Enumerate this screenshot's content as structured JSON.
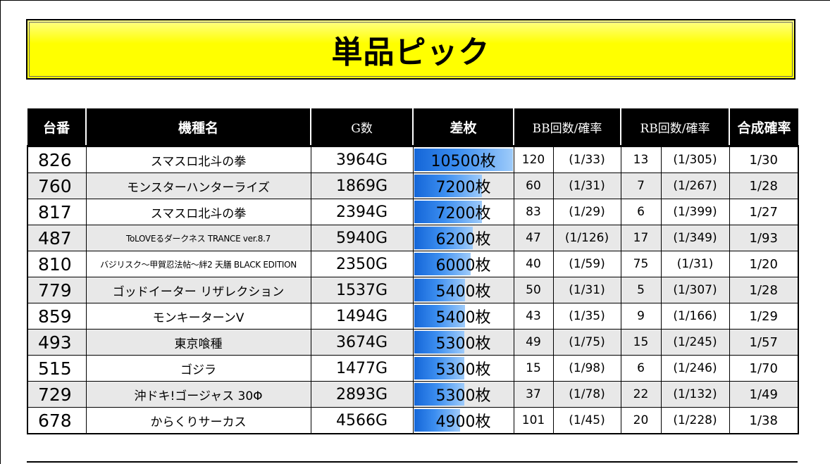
{
  "title": "単品ピック",
  "headers": {
    "no": "台番",
    "machine": "機種名",
    "games": "G数",
    "diff": "差枚",
    "bb": "BB回数/確率",
    "rb": "RB回数/確率",
    "combined": "合成確率"
  },
  "colors": {
    "banner": "#ffff00",
    "header_bg": "#000000",
    "bar": "#1e73e0",
    "stripe": "#e8e8e8"
  },
  "rows": [
    {
      "no": "826",
      "machine": "スマスロ北斗の拳",
      "games": "3964G",
      "diff": "10500枚",
      "diff_value": 10500,
      "bb": "120",
      "bb_rate": "(1/33)",
      "rb": "13",
      "rb_rate": "(1/305)",
      "combined": "1/30"
    },
    {
      "no": "760",
      "machine": "モンスターハンターライズ",
      "games": "1869G",
      "diff": "7200枚",
      "diff_value": 7200,
      "bb": "60",
      "bb_rate": "(1/31)",
      "rb": "7",
      "rb_rate": "(1/267)",
      "combined": "1/28"
    },
    {
      "no": "817",
      "machine": "スマスロ北斗の拳",
      "games": "2394G",
      "diff": "7200枚",
      "diff_value": 7200,
      "bb": "83",
      "bb_rate": "(1/29)",
      "rb": "6",
      "rb_rate": "(1/399)",
      "combined": "1/27"
    },
    {
      "no": "487",
      "machine": "ToLOVEるダークネス TRANCE ver.8.7",
      "games": "5940G",
      "diff": "6200枚",
      "diff_value": 6200,
      "bb": "47",
      "bb_rate": "(1/126)",
      "rb": "17",
      "rb_rate": "(1/349)",
      "combined": "1/93"
    },
    {
      "no": "810",
      "machine": "バジリスク～甲賀忍法帖～絆2 天膳 BLACK EDITION",
      "games": "2350G",
      "diff": "6000枚",
      "diff_value": 6000,
      "bb": "40",
      "bb_rate": "(1/59)",
      "rb": "75",
      "rb_rate": "(1/31)",
      "combined": "1/20"
    },
    {
      "no": "779",
      "machine": "ゴッドイーター リザレクション",
      "games": "1537G",
      "diff": "5400枚",
      "diff_value": 5400,
      "bb": "50",
      "bb_rate": "(1/31)",
      "rb": "5",
      "rb_rate": "(1/307)",
      "combined": "1/28"
    },
    {
      "no": "859",
      "machine": "モンキーターンV",
      "games": "1494G",
      "diff": "5400枚",
      "diff_value": 5400,
      "bb": "43",
      "bb_rate": "(1/35)",
      "rb": "9",
      "rb_rate": "(1/166)",
      "combined": "1/29"
    },
    {
      "no": "493",
      "machine": "東京喰種",
      "games": "3674G",
      "diff": "5300枚",
      "diff_value": 5300,
      "bb": "49",
      "bb_rate": "(1/75)",
      "rb": "15",
      "rb_rate": "(1/245)",
      "combined": "1/57"
    },
    {
      "no": "515",
      "machine": "ゴジラ",
      "games": "1477G",
      "diff": "5300枚",
      "diff_value": 5300,
      "bb": "15",
      "bb_rate": "(1/98)",
      "rb": "6",
      "rb_rate": "(1/246)",
      "combined": "1/70"
    },
    {
      "no": "729",
      "machine": "沖ドキ!ゴージャス 30Φ",
      "games": "2893G",
      "diff": "5300枚",
      "diff_value": 5300,
      "bb": "37",
      "bb_rate": "(1/78)",
      "rb": "22",
      "rb_rate": "(1/132)",
      "combined": "1/49"
    },
    {
      "no": "678",
      "machine": "からくりサーカス",
      "games": "4566G",
      "diff": "4900枚",
      "diff_value": 4900,
      "bb": "101",
      "bb_rate": "(1/45)",
      "rb": "20",
      "rb_rate": "(1/228)",
      "combined": "1/38"
    }
  ]
}
